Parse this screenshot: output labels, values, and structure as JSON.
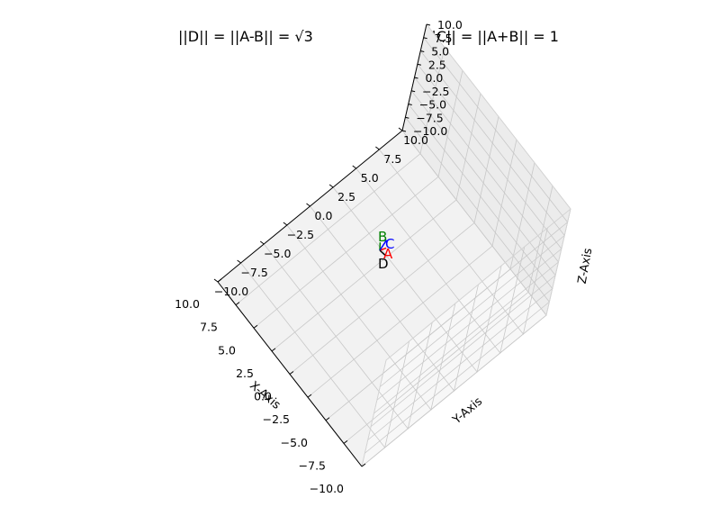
{
  "titles": {
    "left": "||D|| = ||A-B|| = √3",
    "right": "||C|| = ||A+B|| = 1"
  },
  "chart_data": {
    "type": "3d-vector",
    "xlabel": "X-Axis",
    "ylabel": "Y-Axis",
    "zlabel": "Z-Axis",
    "xlim": [
      -10,
      10
    ],
    "ylim": [
      -10,
      10
    ],
    "zlim": [
      -10,
      10
    ],
    "ticks": [
      "−10.0",
      "−7.5",
      "−5.0",
      "−2.5",
      "0.0",
      "2.5",
      "5.0",
      "7.5",
      "10.0"
    ],
    "tick_values": [
      -10,
      -7.5,
      -5,
      -2.5,
      0,
      2.5,
      5,
      7.5,
      10
    ],
    "grid": true,
    "vectors": [
      {
        "label": "A",
        "color": "#ff0000",
        "end": [
          1,
          0,
          0
        ]
      },
      {
        "label": "B",
        "color": "#008000",
        "end": [
          -0.5,
          0.866,
          0
        ]
      },
      {
        "label": "C",
        "color": "#0000ff",
        "end": [
          0.5,
          0.866,
          0
        ]
      },
      {
        "label": "D",
        "color": "#000000",
        "end": [
          1.5,
          -0.866,
          0
        ]
      }
    ]
  }
}
